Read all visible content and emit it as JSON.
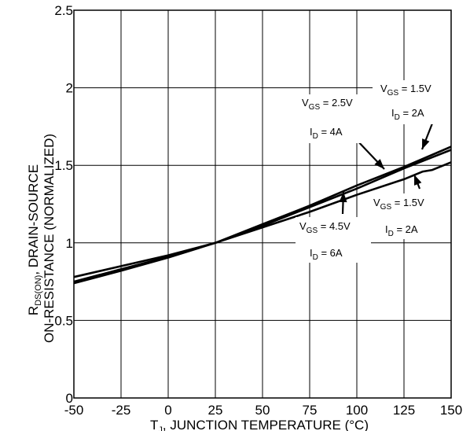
{
  "chart_data": {
    "type": "line",
    "title": "",
    "xlabel": {
      "prefix": "T",
      "sub": "J",
      "rest": ", JUNCTION TEMPERATURE (°C)"
    },
    "ylabel": {
      "line1": {
        "prefix": "R",
        "sub": "DS(ON)",
        "rest": ", DRAIN-SOURCE"
      },
      "line2": "ON-RESISTANCE (NORMALIZED)"
    },
    "xlim": [
      -50,
      150
    ],
    "ylim": [
      0,
      2.5
    ],
    "grid": true,
    "x_ticks": [
      "-50",
      "-25",
      "0",
      "25",
      "50",
      "75",
      "100",
      "125",
      "150"
    ],
    "y_ticks": [
      "0",
      "0.5",
      "1",
      "1.5",
      "2",
      "2.5"
    ],
    "series": [
      {
        "x": [
          -50,
          -25,
          0,
          25,
          50,
          75,
          100,
          125,
          150
        ],
        "values": [
          0.75,
          0.83,
          0.91,
          1.0,
          1.12,
          1.24,
          1.37,
          1.49,
          1.62
        ]
      },
      {
        "x": [
          -50,
          -25,
          0,
          25,
          50,
          75,
          100,
          125,
          150
        ],
        "values": [
          0.74,
          0.82,
          0.905,
          1.0,
          1.11,
          1.23,
          1.35,
          1.48,
          1.6
        ]
      },
      {
        "x": [
          -50,
          -25,
          0,
          25,
          50,
          75,
          100,
          125,
          135,
          140,
          150
        ],
        "values": [
          0.78,
          0.85,
          0.92,
          1.0,
          1.1,
          1.2,
          1.31,
          1.41,
          1.46,
          1.47,
          1.52
        ]
      }
    ],
    "annotations": [
      {
        "vgs": "2.5V",
        "id": "4A"
      },
      {
        "vgs": "1.5V",
        "id": "2A"
      },
      {
        "vgs": "1.5V",
        "id": "2A"
      },
      {
        "vgs": "4.5V",
        "id": "6A"
      }
    ]
  }
}
